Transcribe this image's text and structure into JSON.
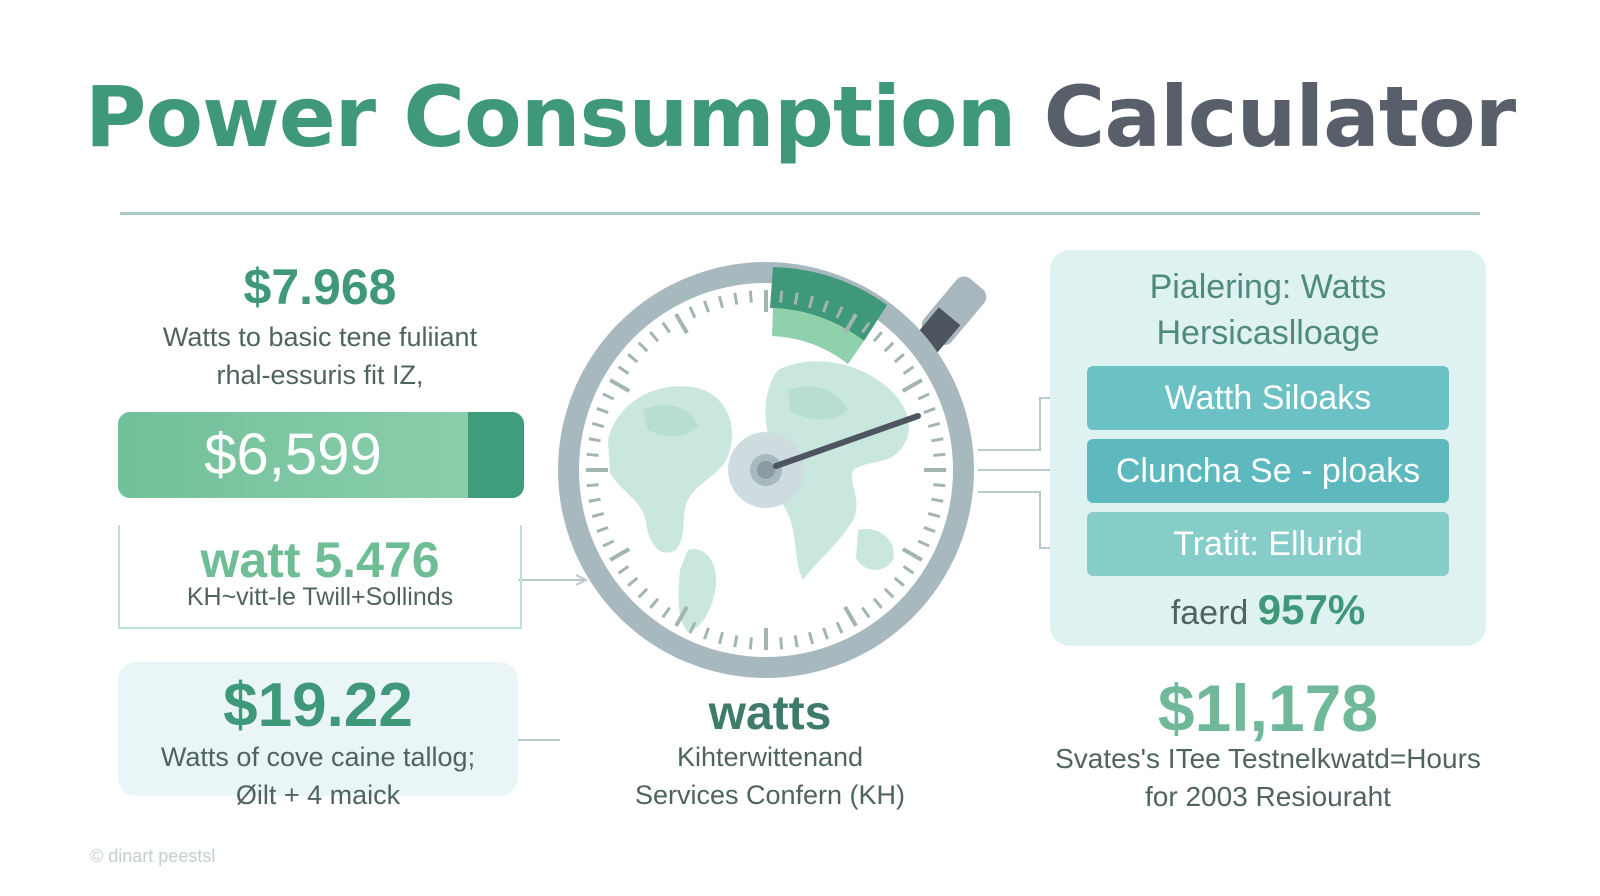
{
  "title": {
    "part1": "Power Consumption",
    "part2": "Calculator"
  },
  "left": {
    "amount_top": "$7.968",
    "amount_top_sub": [
      "Watts to basic tene fuliiant",
      "rhal-essuris fit IZ,"
    ],
    "bar_value": "$6,599",
    "watt_value": "watt 5.476",
    "watt_sub": "KH~vitt-le Twill+Sollinds",
    "card_amount": "$19.22",
    "card_sub": [
      "Watts of cove caine tallog;",
      "Øilt + 4 maick"
    ]
  },
  "center": {
    "label": "watts",
    "sub": [
      "Kihterwittenand",
      "Services Confern (KH)"
    ]
  },
  "right": {
    "heading": [
      "Pialering: Watts",
      "Hersicaslloage"
    ],
    "options": [
      "Watth Siloaks",
      "Cluncha Se - ploaks",
      "Tratit: Ellurid"
    ],
    "percent_prefix": "faerd",
    "percent": "957%",
    "amount": "$1l,178",
    "amount_sub": [
      "Svates's ITee Testnelkwatd=Hours",
      "for 2003 Resiouraht"
    ]
  },
  "footer": "© dinart peestsl",
  "colors": {
    "accent": "#3f9879",
    "dark": "#585f6b",
    "teal": "#6cc1c4"
  }
}
